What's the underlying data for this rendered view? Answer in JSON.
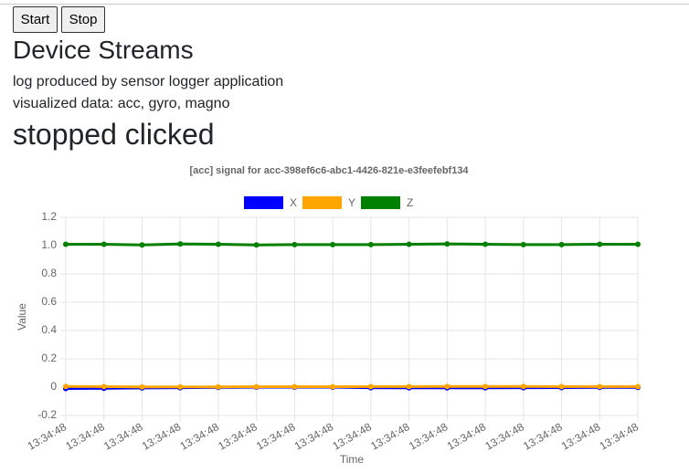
{
  "buttons": [
    "Start",
    "Stop"
  ],
  "header": {
    "title": "Device Streams"
  },
  "description": [
    "log produced by sensor logger application",
    "visualized data: acc, gyro, magno"
  ],
  "status": "stopped clicked",
  "chart_data": {
    "type": "line",
    "title": "[acc] signal for acc-398ef6c6-abc1-4426-821e-e3feefebf134",
    "x_label": "Time",
    "y_label": "Value",
    "categories": [
      "13:34:48",
      "13:34:48",
      "13:34:48",
      "13:34:48",
      "13:34:48",
      "13:34:48",
      "13:34:48",
      "13:34:48",
      "13:34:48",
      "13:34:48",
      "13:34:48",
      "13:34:48",
      "13:34:48",
      "13:34:48",
      "13:34:48",
      "13:34:48"
    ],
    "series": [
      {
        "name": "X",
        "color": "#0000ff",
        "values": [
          -0.01,
          -0.008,
          -0.006,
          -0.004,
          -0.002,
          0,
          0,
          0,
          -0.004,
          -0.005,
          -0.005,
          -0.005,
          -0.004,
          -0.003,
          -0.002,
          -0.002
        ]
      },
      {
        "name": "Y",
        "color": "#ffa500",
        "values": [
          0.005,
          0.004,
          0.002,
          0.002,
          0.002,
          0.003,
          0.003,
          0.003,
          0.004,
          0.004,
          0.005,
          0.005,
          0.005,
          0.004,
          0.004,
          0.004
        ]
      },
      {
        "name": "Z",
        "color": "#008000",
        "values": [
          1.01,
          1.01,
          1.005,
          1.012,
          1.01,
          1.005,
          1.007,
          1.007,
          1.007,
          1.01,
          1.012,
          1.01,
          1.007,
          1.007,
          1.01,
          1.01
        ]
      }
    ],
    "ylim": [
      -0.2,
      1.2
    ],
    "yticks": [
      -0.2,
      0,
      0.2,
      0.4,
      0.6,
      0.8,
      {
        "value": 1,
        "label": "1.0"
      },
      1.2
    ],
    "grid": true,
    "legend": "top"
  }
}
